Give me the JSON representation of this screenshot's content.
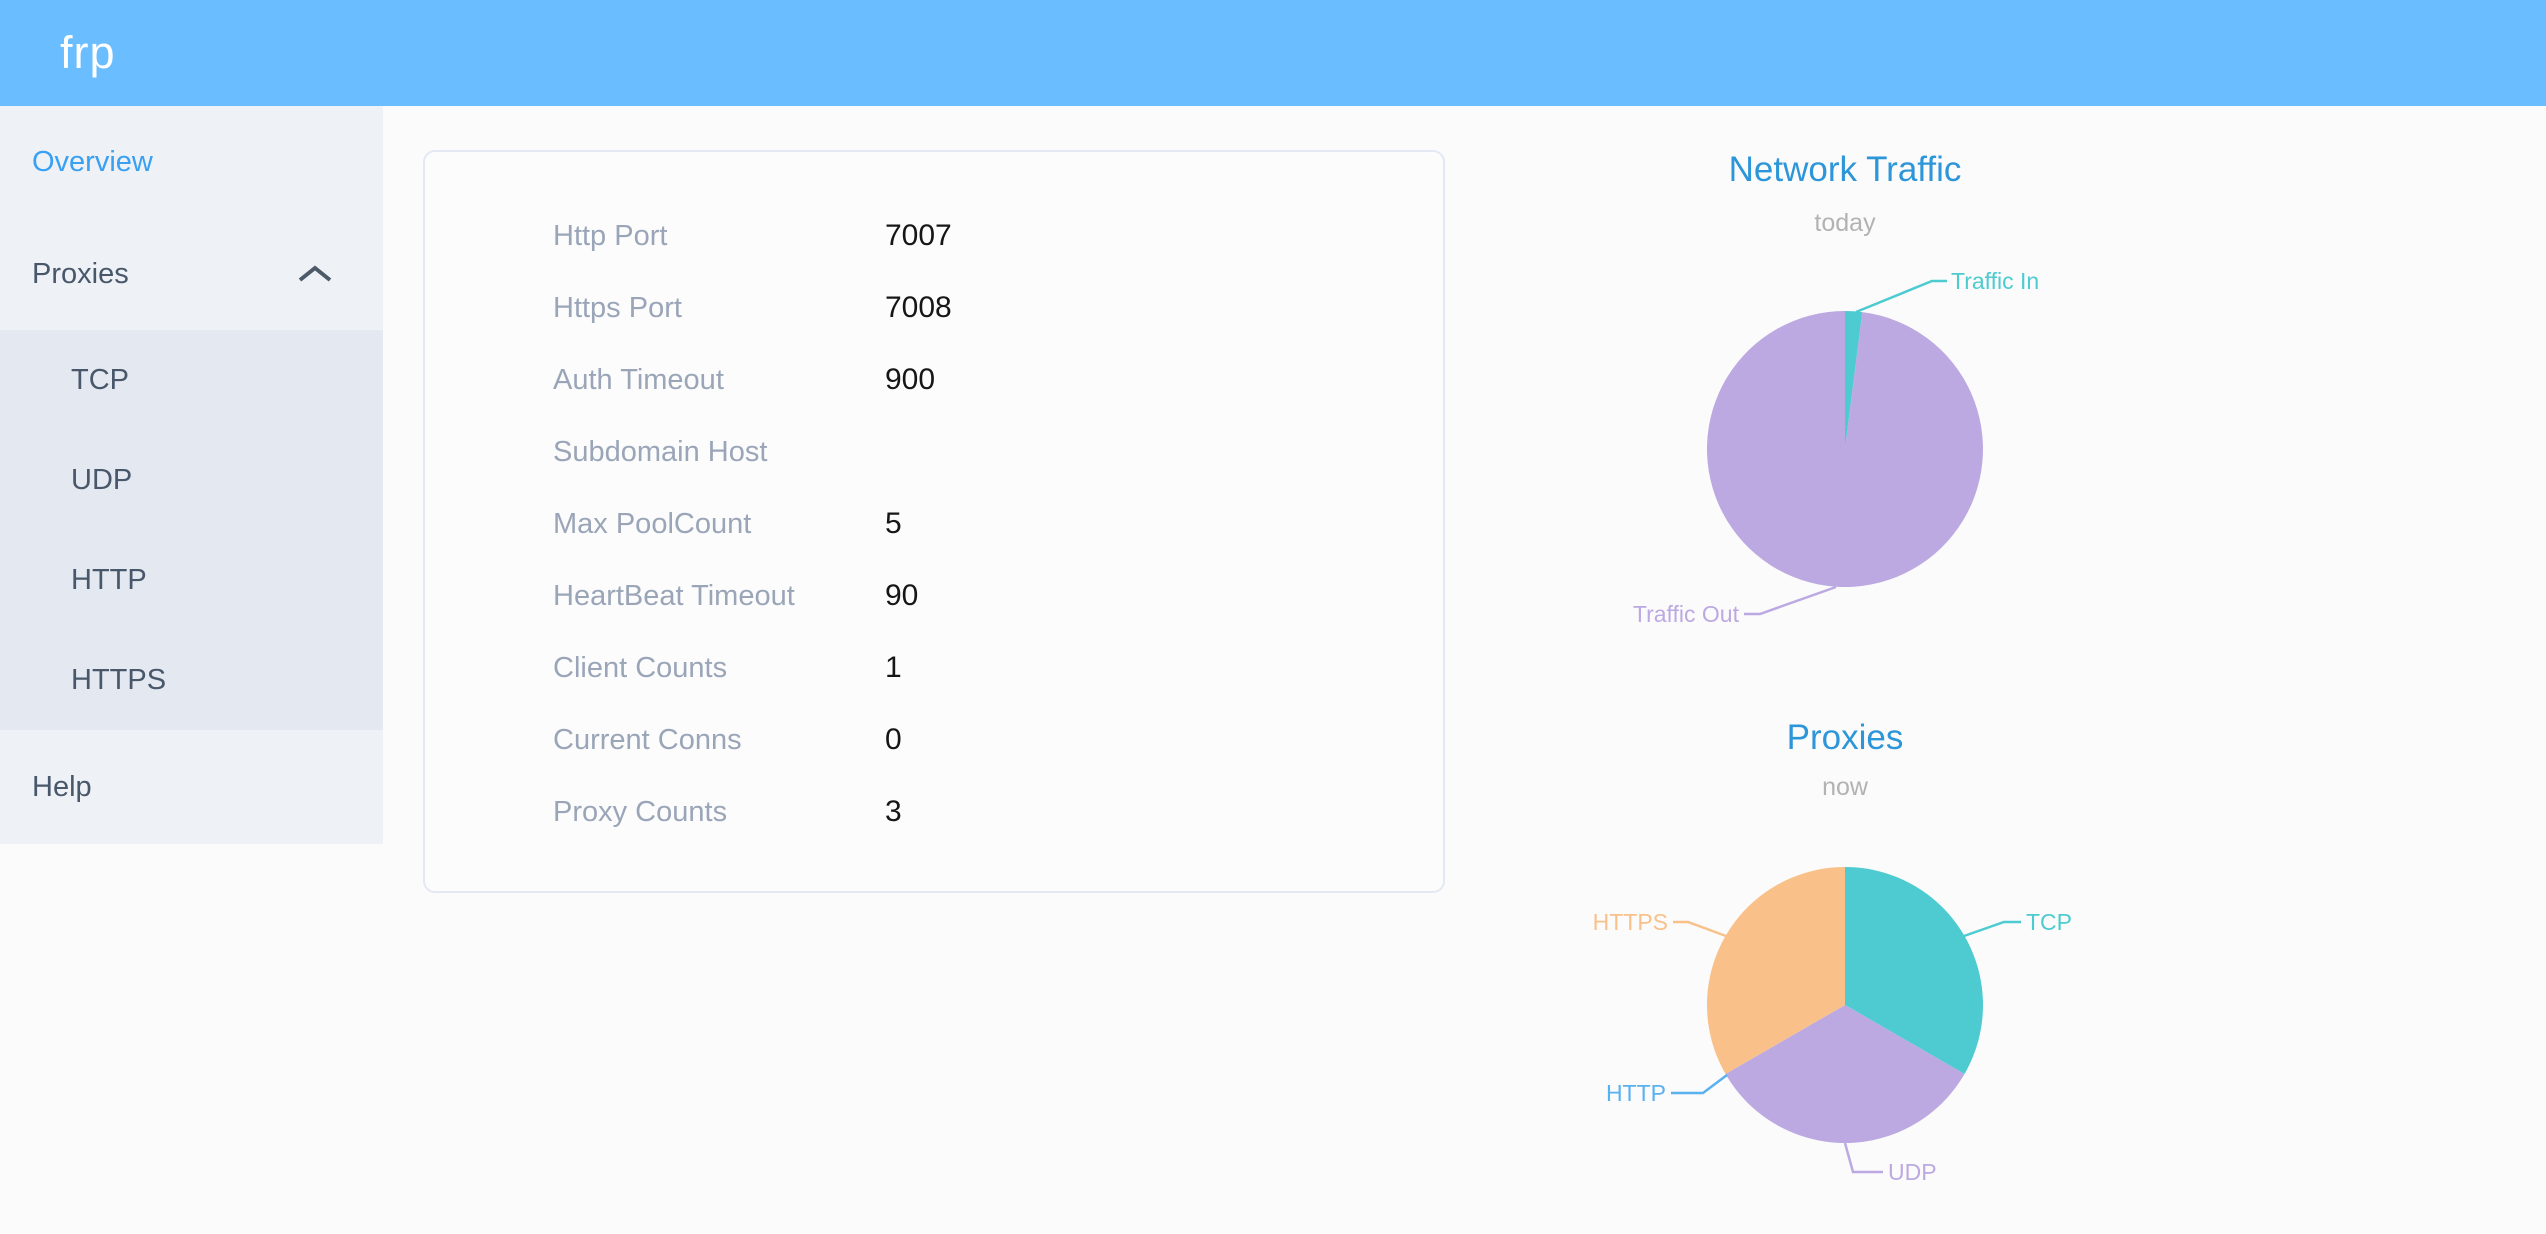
{
  "header": {
    "logo": "frp"
  },
  "sidebar": {
    "overview_label": "Overview",
    "proxies_label": "Proxies",
    "submenu": [
      "TCP",
      "UDP",
      "HTTP",
      "HTTPS"
    ],
    "help_label": "Help"
  },
  "overview_panel": {
    "rows": [
      {
        "label": "Http Port",
        "value": "7007"
      },
      {
        "label": "Https Port",
        "value": "7008"
      },
      {
        "label": "Auth Timeout",
        "value": "900"
      },
      {
        "label": "Subdomain Host",
        "value": ""
      },
      {
        "label": "Max PoolCount",
        "value": "5"
      },
      {
        "label": "HeartBeat Timeout",
        "value": "90"
      },
      {
        "label": "Client Counts",
        "value": "1"
      },
      {
        "label": "Current Conns",
        "value": "0"
      },
      {
        "label": "Proxy Counts",
        "value": "3"
      }
    ]
  },
  "colors": {
    "header_bg": "#6abdff",
    "sidebar_bg": "#eef1f6",
    "submenu_bg": "#e4e8f1",
    "active_menu_blue": "#3aa0f2",
    "chart_title_blue": "#2d96d9",
    "teal": "#4ecbd0",
    "purple": "#bca9e2",
    "blue": "#5ab1ef",
    "orange": "#f9c189"
  },
  "chart_data": [
    {
      "type": "pie",
      "title": "Network Traffic",
      "subtitle": "today",
      "legend_position": "callout-labels",
      "unit": "percent (estimated from slice angles)",
      "series": [
        {
          "name": "Traffic In",
          "value": 2,
          "color": "#4ecbd0"
        },
        {
          "name": "Traffic Out",
          "value": 98,
          "color": "#bca9e2"
        }
      ]
    },
    {
      "type": "pie",
      "title": "Proxies",
      "subtitle": "now",
      "legend_position": "callout-labels",
      "unit": "proxy count",
      "series": [
        {
          "name": "TCP",
          "value": 1,
          "color": "#4ecbd0"
        },
        {
          "name": "UDP",
          "value": 1,
          "color": "#bca9e2"
        },
        {
          "name": "HTTP",
          "value": 0,
          "color": "#5ab1ef"
        },
        {
          "name": "HTTPS",
          "value": 1,
          "color": "#f9c189"
        }
      ]
    }
  ]
}
